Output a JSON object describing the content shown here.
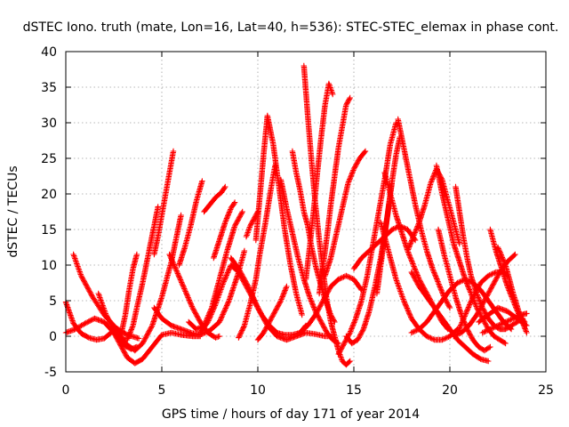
{
  "chart_data": {
    "type": "scatter",
    "title": "dSTEC Iono. truth (mate, Lon=16, Lat=40, h=536): STEC-STEC_elemax in phase cont.",
    "xlabel": "GPS time / hours of day 171 of year 2014",
    "ylabel": "dSTEC  / TECUs",
    "xlim": [
      0,
      25
    ],
    "ylim": [
      -5,
      40
    ],
    "xticks": [
      0,
      5,
      10,
      15,
      20,
      25
    ],
    "yticks": [
      -5,
      0,
      5,
      10,
      15,
      20,
      25,
      30,
      35,
      40
    ],
    "grid": true,
    "marker": "plus",
    "color": "#ff0000",
    "series": [
      {
        "x": [
          0.0,
          0.4,
          0.8,
          1.2,
          1.6,
          2.0,
          2.4
        ],
        "y": [
          4.8,
          1.8,
          0.4,
          -0.2,
          -0.5,
          -0.3,
          0.6
        ]
      },
      {
        "x": [
          0.4,
          0.8,
          1.4,
          2.0,
          2.6,
          3.2,
          3.8
        ],
        "y": [
          11.5,
          8.5,
          5.5,
          3.0,
          1.2,
          0.2,
          -0.3
        ]
      },
      {
        "x": [
          1.7,
          2.1,
          2.6,
          3.0,
          3.4,
          3.7
        ],
        "y": [
          6.0,
          3.0,
          0.5,
          -1.2,
          -1.8,
          -1.5
        ]
      },
      {
        "x": [
          0.0,
          0.5,
          1.0,
          1.5,
          2.0,
          2.5,
          2.9,
          3.1,
          3.3,
          3.5,
          3.7
        ],
        "y": [
          0.5,
          1.0,
          1.8,
          2.5,
          2.0,
          0.5,
          0.5,
          3.0,
          6.5,
          9.5,
          11.5
        ]
      },
      {
        "x": [
          2.4,
          2.8,
          3.2,
          3.6,
          4.0,
          4.5,
          5.0,
          5.5,
          6.0,
          6.6,
          7.0
        ],
        "y": [
          1.0,
          -1.0,
          -3.0,
          -3.8,
          -3.2,
          -1.5,
          0.2,
          0.5,
          0.2,
          0.0,
          0.0
        ]
      },
      {
        "x": [
          2.7,
          3.1,
          3.6,
          4.0,
          4.5,
          5.0,
          5.5,
          6.0
        ],
        "y": [
          1.0,
          -1.0,
          -2.0,
          -1.0,
          1.5,
          5.5,
          10.5,
          17.0
        ]
      },
      {
        "x": [
          2.6,
          2.9,
          3.2,
          3.5,
          3.7,
          4.0,
          4.3,
          4.6,
          4.8
        ],
        "y": [
          0.0,
          -0.5,
          -0.5,
          1.5,
          4.0,
          7.5,
          11.5,
          15.5,
          18.2
        ]
      },
      {
        "x": [
          4.6,
          4.8,
          5.0,
          5.2,
          5.4,
          5.6
        ],
        "y": [
          11.5,
          14.0,
          17.0,
          20.0,
          23.0,
          26.0
        ]
      },
      {
        "x": [
          4.6,
          5.0,
          5.5,
          6.0,
          6.5,
          7.0,
          7.5,
          8.0,
          8.5,
          9.0,
          9.3
        ],
        "y": [
          4.0,
          2.5,
          1.5,
          1.0,
          0.5,
          0.2,
          0.8,
          2.0,
          5.0,
          9.0,
          12.0
        ]
      },
      {
        "x": [
          5.4,
          5.8,
          6.2,
          6.6,
          7.0,
          7.4,
          7.8,
          8.0
        ],
        "y": [
          11.5,
          9.0,
          6.5,
          4.0,
          2.0,
          0.5,
          -0.2,
          0.0
        ]
      },
      {
        "x": [
          5.9,
          6.2,
          6.5,
          6.8,
          7.1
        ],
        "y": [
          10.0,
          12.5,
          15.5,
          19.0,
          21.8
        ]
      },
      {
        "x": [
          6.4,
          6.8,
          7.2,
          7.6,
          8.0,
          8.4,
          8.8,
          9.2
        ],
        "y": [
          2.0,
          1.0,
          1.5,
          4.0,
          8.0,
          12.0,
          15.5,
          17.5
        ]
      },
      {
        "x": [
          7.0,
          7.4,
          7.8,
          8.2,
          8.6,
          9.0,
          9.4,
          9.8,
          10.2,
          10.6,
          11.0,
          11.4,
          11.8,
          12.2,
          12.5
        ],
        "y": [
          0.5,
          2.0,
          4.5,
          7.5,
          10.0,
          9.0,
          7.0,
          5.0,
          3.0,
          1.5,
          0.5,
          0.2,
          0.2,
          0.5,
          1.5
        ]
      },
      {
        "x": [
          7.7,
          8.0,
          8.3,
          8.6,
          8.8
        ],
        "y": [
          11.0,
          13.5,
          16.0,
          18.0,
          18.8
        ]
      },
      {
        "x": [
          7.2,
          7.5,
          7.8,
          8.1,
          8.3
        ],
        "y": [
          17.5,
          18.5,
          19.5,
          20.2,
          21.0
        ]
      },
      {
        "x": [
          8.6,
          9.0,
          9.5,
          10.0,
          10.5,
          11.0,
          11.5,
          12.0,
          12.5,
          13.0,
          13.5,
          14.0
        ],
        "y": [
          11.0,
          9.5,
          7.0,
          4.0,
          1.5,
          0.0,
          -0.5,
          0.0,
          0.5,
          0.3,
          0.0,
          0.0
        ]
      },
      {
        "x": [
          9.0,
          9.3,
          9.6,
          9.9,
          10.1,
          10.4,
          10.7,
          10.9
        ],
        "y": [
          -0.2,
          1.5,
          4.5,
          8.0,
          11.5,
          16.0,
          21.0,
          24.0
        ]
      },
      {
        "x": [
          9.9,
          10.1,
          10.3,
          10.5,
          10.8,
          11.1,
          11.4,
          11.7,
          12.0,
          12.3
        ],
        "y": [
          13.5,
          19.5,
          25.5,
          31.0,
          27.0,
          21.0,
          15.0,
          10.0,
          6.0,
          3.0
        ]
      },
      {
        "x": [
          10.0,
          10.3,
          10.6,
          10.9,
          11.2,
          11.5
        ],
        "y": [
          -0.5,
          0.5,
          2.0,
          3.5,
          5.0,
          7.0
        ]
      },
      {
        "x": [
          9.4,
          9.6,
          9.8,
          10.0
        ],
        "y": [
          14.0,
          15.5,
          16.5,
          17.5
        ]
      },
      {
        "x": [
          11.2,
          11.5,
          11.8,
          12.1,
          12.4,
          12.7,
          13.0,
          13.3,
          13.6,
          13.9,
          14.2
        ],
        "y": [
          22.0,
          18.0,
          14.5,
          11.0,
          8.0,
          5.5,
          3.5,
          2.0,
          0.5,
          -0.5,
          -1.0
        ]
      },
      {
        "x": [
          11.8,
          12.0,
          12.2,
          12.4,
          12.6,
          12.8,
          13.0,
          13.2,
          13.4,
          13.6,
          13.8,
          14.0
        ],
        "y": [
          26.0,
          23.0,
          20.5,
          17.5,
          15.5,
          12.5,
          10.0,
          8.0,
          6.0,
          4.5,
          3.0,
          2.0
        ]
      },
      {
        "x": [
          12.4,
          12.6,
          12.8,
          13.0,
          13.2,
          13.4,
          13.6,
          13.8,
          14.0,
          14.2,
          14.4,
          14.6,
          14.8
        ],
        "y": [
          38.0,
          31.0,
          24.5,
          18.5,
          13.5,
          9.0,
          5.0,
          2.0,
          0.0,
          -2.0,
          -3.5,
          -4.0,
          -3.5
        ]
      },
      {
        "x": [
          12.5,
          12.7,
          12.9,
          13.1,
          13.3,
          13.5,
          13.7,
          13.9
        ],
        "y": [
          8.0,
          12.5,
          17.5,
          23.0,
          28.0,
          32.5,
          35.5,
          34.0
        ]
      },
      {
        "x": [
          13.2,
          13.4,
          13.6,
          13.8,
          14.0,
          14.2,
          14.4,
          14.6,
          14.8
        ],
        "y": [
          6.0,
          10.0,
          14.0,
          18.5,
          22.5,
          26.5,
          29.5,
          32.5,
          33.5
        ]
      },
      {
        "x": [
          12.2,
          12.6,
          13.0,
          13.4,
          13.8,
          14.2,
          14.6,
          15.0,
          15.4
        ],
        "y": [
          0.5,
          1.5,
          3.0,
          5.0,
          7.0,
          8.0,
          8.5,
          8.0,
          6.5
        ]
      },
      {
        "x": [
          13.5,
          13.8,
          14.1,
          14.4,
          14.7,
          15.0,
          15.3,
          15.6
        ],
        "y": [
          8.5,
          11.0,
          14.5,
          18.0,
          21.5,
          23.5,
          25.0,
          26.0
        ]
      },
      {
        "x": [
          14.2,
          14.5,
          14.8,
          15.1,
          15.4,
          15.7,
          16.0,
          16.3,
          16.6,
          16.9,
          17.2
        ],
        "y": [
          -2.5,
          -1.0,
          0.5,
          2.5,
          5.0,
          8.5,
          13.0,
          17.5,
          22.0,
          27.0,
          30.0
        ]
      },
      {
        "x": [
          14.6,
          14.9,
          15.2,
          15.5,
          15.8,
          16.1,
          16.4,
          16.7,
          17.0
        ],
        "y": [
          0.0,
          -1.0,
          -0.5,
          1.0,
          3.5,
          7.0,
          11.0,
          16.0,
          22.0
        ]
      },
      {
        "x": [
          16.2,
          16.4,
          16.6,
          16.8,
          17.0,
          17.2,
          17.4
        ],
        "y": [
          6.0,
          10.0,
          14.0,
          18.0,
          22.0,
          25.5,
          28.0
        ]
      },
      {
        "x": [
          15.0,
          15.4,
          15.8,
          16.2,
          16.6,
          17.0,
          17.4,
          17.8,
          18.2
        ],
        "y": [
          9.5,
          11.0,
          12.0,
          13.0,
          14.0,
          15.0,
          15.5,
          15.0,
          13.5
        ]
      },
      {
        "x": [
          16.4,
          16.8,
          17.2,
          17.6,
          18.0,
          18.4,
          18.8,
          19.2,
          19.6,
          20.0,
          20.4
        ],
        "y": [
          16.0,
          12.0,
          8.0,
          5.0,
          2.5,
          1.0,
          0.0,
          -0.5,
          -0.5,
          0.0,
          1.0
        ]
      },
      {
        "x": [
          17.3,
          17.6,
          17.9,
          18.2,
          18.5,
          18.8,
          19.1,
          19.4,
          19.7,
          20.0
        ],
        "y": [
          30.5,
          26.5,
          22.5,
          18.5,
          15.0,
          12.0,
          9.5,
          7.5,
          5.5,
          4.0
        ]
      },
      {
        "x": [
          16.6,
          16.9,
          17.2,
          17.5,
          17.8,
          18.1,
          18.4,
          18.7,
          19.0,
          19.3,
          19.6,
          19.9
        ],
        "y": [
          23.0,
          20.0,
          17.0,
          14.5,
          12.0,
          10.0,
          8.0,
          6.5,
          5.0,
          3.5,
          2.0,
          1.0
        ]
      },
      {
        "x": [
          17.8,
          18.1,
          18.4,
          18.7,
          19.0,
          19.3,
          19.6,
          19.9,
          20.2,
          20.5
        ],
        "y": [
          12.0,
          14.0,
          16.0,
          18.5,
          21.5,
          23.5,
          22.0,
          19.0,
          16.0,
          13.0
        ]
      },
      {
        "x": [
          18.0,
          18.4,
          18.8,
          19.2,
          19.6,
          20.0,
          20.4,
          20.8,
          21.2,
          21.6,
          22.0
        ],
        "y": [
          9.0,
          7.0,
          5.5,
          4.0,
          2.5,
          1.0,
          -0.5,
          -1.5,
          -2.5,
          -3.2,
          -3.5
        ]
      },
      {
        "x": [
          19.4,
          19.7,
          20.0,
          20.3,
          20.6,
          20.9,
          21.2,
          21.5,
          21.8,
          22.1
        ],
        "y": [
          15.0,
          11.5,
          8.5,
          5.5,
          3.0,
          1.0,
          -0.5,
          -1.5,
          -2.0,
          -1.5
        ]
      },
      {
        "x": [
          19.3,
          19.6,
          19.9,
          20.2,
          20.5,
          20.8,
          21.1,
          21.4,
          21.7,
          22.0,
          22.3,
          22.6,
          22.9
        ],
        "y": [
          24.0,
          20.0,
          16.5,
          13.0,
          10.5,
          8.0,
          6.0,
          4.0,
          2.5,
          1.0,
          0.0,
          -0.5,
          -1.0
        ]
      },
      {
        "x": [
          20.3,
          20.5,
          20.7,
          20.9,
          21.1,
          21.4,
          21.7,
          22.0,
          22.3,
          22.6,
          22.9,
          23.2,
          23.5,
          23.8
        ],
        "y": [
          21.0,
          17.5,
          14.0,
          11.0,
          8.5,
          6.0,
          4.0,
          2.5,
          1.5,
          1.0,
          1.0,
          1.5,
          2.0,
          2.5
        ]
      },
      {
        "x": [
          18.0,
          18.4,
          18.8,
          19.2,
          19.6,
          20.0,
          20.4,
          20.8,
          21.2,
          21.6,
          22.0,
          22.4,
          22.8,
          23.2
        ],
        "y": [
          0.5,
          1.0,
          2.0,
          3.5,
          5.0,
          6.5,
          7.5,
          8.0,
          7.5,
          6.5,
          5.0,
          3.5,
          2.0,
          1.0
        ]
      },
      {
        "x": [
          20.2,
          20.6,
          21.0,
          21.4,
          21.8,
          22.2,
          22.6,
          23.0,
          23.4
        ],
        "y": [
          0.0,
          0.5,
          1.5,
          3.0,
          5.0,
          7.0,
          9.0,
          10.5,
          11.5
        ]
      },
      {
        "x": [
          20.4,
          20.8,
          21.2,
          21.6,
          22.0,
          22.4,
          22.8,
          23.0
        ],
        "y": [
          0.5,
          3.0,
          5.5,
          7.5,
          8.5,
          9.0,
          9.0,
          8.5
        ]
      },
      {
        "x": [
          22.1,
          22.4,
          22.7,
          23.0,
          23.3,
          23.6,
          23.9
        ],
        "y": [
          15.0,
          12.0,
          9.5,
          7.0,
          5.0,
          3.0,
          2.0
        ]
      },
      {
        "x": [
          22.5,
          22.9,
          23.3,
          23.7,
          24.0
        ],
        "y": [
          12.5,
          10.0,
          6.0,
          2.5,
          0.5
        ]
      },
      {
        "x": [
          21.7,
          22.1,
          22.5,
          22.9,
          23.3,
          23.7,
          24.0
        ],
        "y": [
          0.5,
          1.0,
          1.5,
          2.0,
          2.5,
          3.0,
          3.2
        ]
      },
      {
        "x": [
          21.5,
          22.0,
          22.5,
          23.0,
          23.5,
          24.0
        ],
        "y": [
          2.0,
          3.0,
          4.0,
          3.5,
          2.5,
          1.5
        ]
      }
    ]
  }
}
